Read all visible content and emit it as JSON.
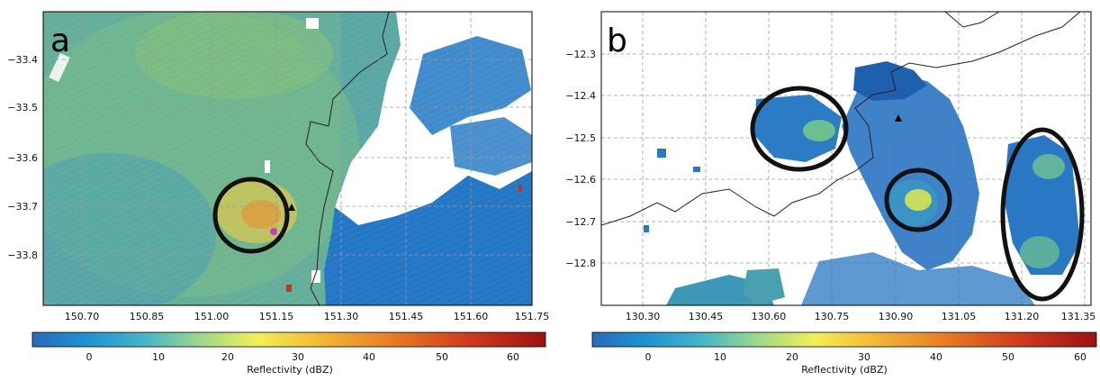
{
  "panels": [
    {
      "id": "a",
      "letter": "a",
      "colors": {
        "main": "#2b89c6",
        "deep": "#1f62ae",
        "green": "#5fb59a",
        "yellow": "#e5d24a",
        "orange": "#d7862d"
      },
      "yticks": [
        "−33.4",
        "−33.5",
        "−33.6",
        "−33.7",
        "−33.8"
      ],
      "xticks": [
        "150.70",
        "150.85",
        "151.00",
        "151.15",
        "151.30",
        "151.45",
        "151.60",
        "151.75"
      ],
      "markers": {
        "triangle": "black",
        "dot": "#c040c0"
      },
      "colorbar": {
        "ticks": [
          "0",
          "10",
          "20",
          "30",
          "40",
          "50",
          "60"
        ],
        "label": "Reflectivity (dBZ)"
      }
    },
    {
      "id": "b",
      "letter": "b",
      "colors": {
        "main": "#2476c0",
        "deep": "#1e56a6",
        "green": "#6cc18f",
        "yellow": "#d7e35f"
      },
      "yticks": [
        "−12.3",
        "−12.4",
        "−12.5",
        "−12.6",
        "−12.7",
        "−12.8"
      ],
      "xticks": [
        "130.30",
        "130.45",
        "130.60",
        "130.75",
        "130.90",
        "131.05",
        "131.20",
        "131.35"
      ],
      "markers": {
        "triangle": "black"
      },
      "colorbar": {
        "ticks": [
          "0",
          "10",
          "20",
          "30",
          "40",
          "50",
          "60"
        ],
        "label": "Reflectivity (dBZ)"
      }
    }
  ]
}
